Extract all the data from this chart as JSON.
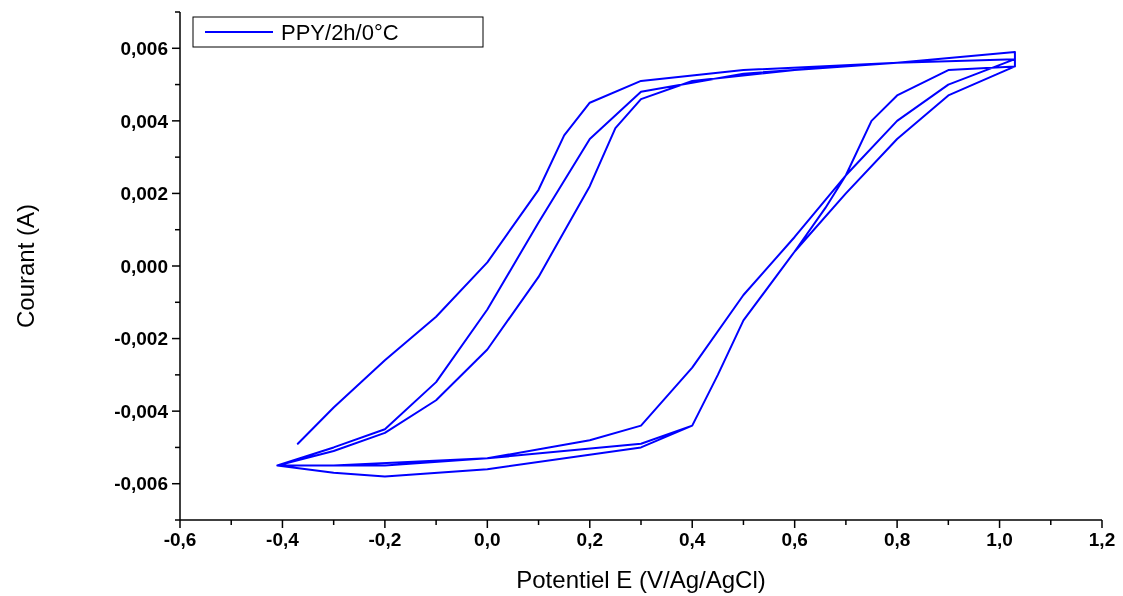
{
  "chart_data": {
    "type": "line",
    "xlabel": "Potentiel E (V/Ag/AgCl)",
    "ylabel": "Courant (A)",
    "xlim": [
      -0.6,
      1.2
    ],
    "ylim": [
      -0.007,
      0.007
    ],
    "xticks": [
      {
        "value": -0.6,
        "label": "-0,6"
      },
      {
        "value": -0.5,
        "label": null
      },
      {
        "value": -0.4,
        "label": "-0,4"
      },
      {
        "value": -0.3,
        "label": null
      },
      {
        "value": -0.2,
        "label": "-0,2"
      },
      {
        "value": -0.1,
        "label": null
      },
      {
        "value": 0,
        "label": "0,0"
      },
      {
        "value": 0.1,
        "label": null
      },
      {
        "value": 0.2,
        "label": "0,2"
      },
      {
        "value": 0.3,
        "label": null
      },
      {
        "value": 0.4,
        "label": "0,4"
      },
      {
        "value": 0.5,
        "label": null
      },
      {
        "value": 0.6,
        "label": "0,6"
      },
      {
        "value": 0.7,
        "label": null
      },
      {
        "value": 0.8,
        "label": "0,8"
      },
      {
        "value": 0.9,
        "label": null
      },
      {
        "value": 1.0,
        "label": "1,0"
      },
      {
        "value": 1.1,
        "label": null
      },
      {
        "value": 1.2,
        "label": "1,2"
      }
    ],
    "yticks": [
      {
        "value": -0.007,
        "label": null
      },
      {
        "value": -0.006,
        "label": "-0,006"
      },
      {
        "value": -0.005,
        "label": null
      },
      {
        "value": -0.004,
        "label": "-0,004"
      },
      {
        "value": -0.003,
        "label": null
      },
      {
        "value": -0.002,
        "label": "-0,002"
      },
      {
        "value": -0.001,
        "label": null
      },
      {
        "value": 0,
        "label": "0,000"
      },
      {
        "value": 0.001,
        "label": null
      },
      {
        "value": 0.002,
        "label": "0,002"
      },
      {
        "value": 0.003,
        "label": null
      },
      {
        "value": 0.004,
        "label": "0,004"
      },
      {
        "value": 0.005,
        "label": null
      },
      {
        "value": 0.006,
        "label": "0,006"
      },
      {
        "value": 0.007,
        "label": null
      }
    ],
    "grid": false,
    "legend": "top left",
    "marker": "none",
    "line_style": "solid",
    "series": [
      {
        "name": "PPY/2h/0°C",
        "color": "#0000ff",
        "x": [
          -0.37,
          -0.3,
          -0.2,
          -0.1,
          0.0,
          0.1,
          0.15,
          0.2,
          0.3,
          0.5,
          0.8,
          1.03,
          1.03,
          0.9,
          0.8,
          0.75,
          0.7,
          0.66,
          0.6,
          0.5,
          0.45,
          0.4,
          0.3,
          0.0,
          -0.3,
          -0.41,
          -0.3,
          -0.2,
          -0.1,
          0.0,
          0.1,
          0.2,
          0.3,
          0.5,
          0.8,
          1.03,
          1.03,
          0.9,
          0.8,
          0.7,
          0.6,
          0.5,
          0.45,
          0.4,
          0.3,
          0.0,
          -0.2,
          -0.3,
          -0.41,
          -0.3,
          -0.2,
          -0.1,
          0.0,
          0.1,
          0.2,
          0.25,
          0.3,
          0.4,
          0.6,
          0.8,
          1.03,
          1.03,
          0.9,
          0.8,
          0.7,
          0.6,
          0.5,
          0.4,
          0.3,
          0.2,
          0.0,
          -0.2,
          -0.41
        ],
        "values": [
          -0.0049,
          -0.0039,
          -0.0026,
          -0.0014,
          0.0001,
          0.0021,
          0.0036,
          0.0045,
          0.0051,
          0.0054,
          0.0056,
          0.0057,
          0.0055,
          0.0054,
          0.0047,
          0.004,
          0.0025,
          0.0016,
          0.0004,
          -0.0015,
          -0.003,
          -0.0044,
          -0.0049,
          -0.0053,
          -0.0055,
          -0.0055,
          -0.005,
          -0.0045,
          -0.0032,
          -0.0012,
          0.0012,
          0.0035,
          0.0048,
          0.0053,
          0.0056,
          0.0059,
          0.0055,
          0.0047,
          0.0035,
          0.002,
          0.0004,
          -0.0015,
          -0.003,
          -0.0044,
          -0.005,
          -0.0056,
          -0.0058,
          -0.0057,
          -0.0055,
          -0.0051,
          -0.0046,
          -0.0037,
          -0.0023,
          -0.0003,
          0.0022,
          0.0038,
          0.0046,
          0.0051,
          0.0054,
          0.0056,
          0.0059,
          0.0057,
          0.005,
          0.004,
          0.0025,
          0.0008,
          -0.0008,
          -0.0028,
          -0.0044,
          -0.0048,
          -0.0053,
          -0.0055,
          -0.0055
        ]
      }
    ]
  }
}
